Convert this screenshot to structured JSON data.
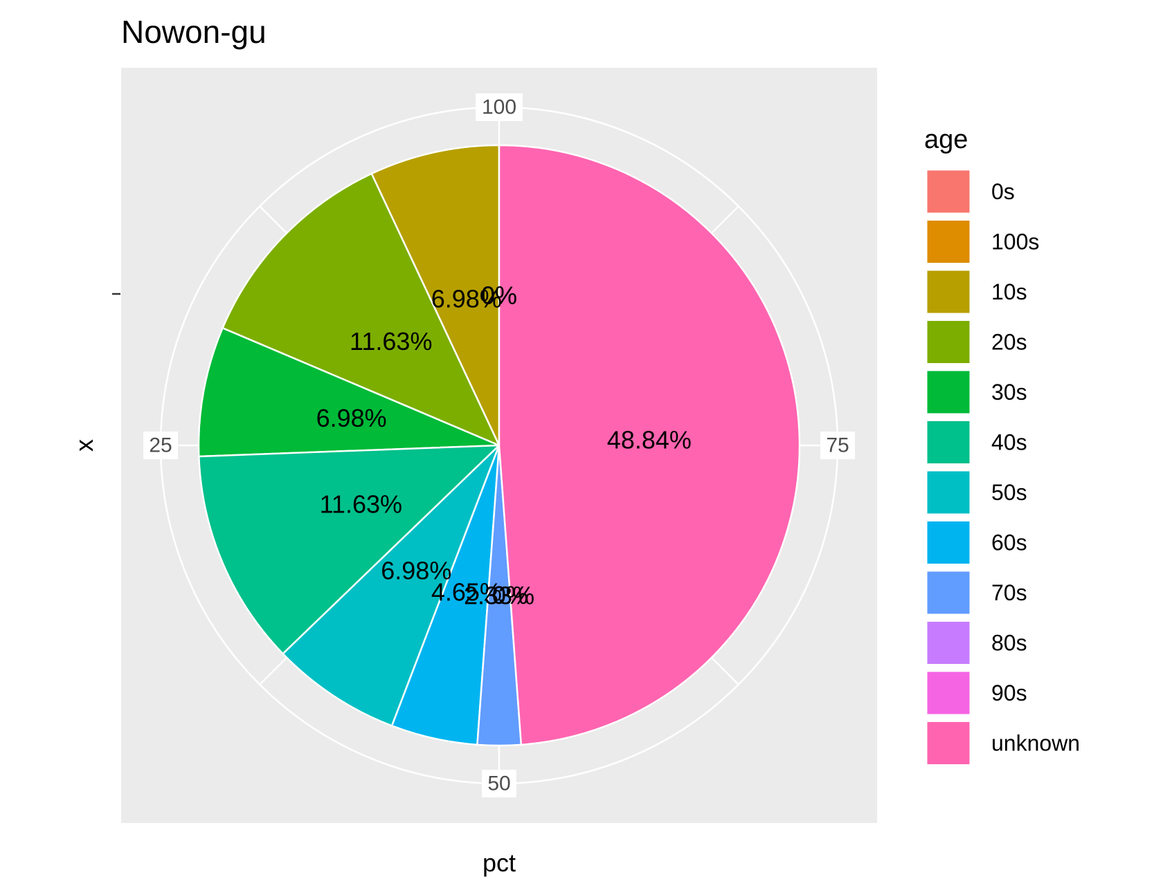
{
  "chart_data": {
    "type": "pie",
    "title": "Nowon-gu",
    "xlabel": "pct",
    "ylabel": "x",
    "y_tick_label": "",
    "angular_ticks": [
      "100",
      "25",
      "50",
      "75"
    ],
    "legend_title": "age",
    "legend_position": "right",
    "grid": true,
    "categories": [
      "0s",
      "100s",
      "10s",
      "20s",
      "30s",
      "40s",
      "50s",
      "60s",
      "70s",
      "80s",
      "90s",
      "unknown"
    ],
    "values": [
      0,
      0,
      6.98,
      11.63,
      6.98,
      11.63,
      6.98,
      4.65,
      2.33,
      0,
      0,
      48.84
    ],
    "labels": [
      "0%",
      "0%",
      "6.98%",
      "11.63%",
      "6.98%",
      "11.63%",
      "6.98%",
      "4.65%",
      "2.33%",
      "0%",
      "0%",
      "48.84%"
    ],
    "colors": [
      "#F8766D",
      "#DE8C00",
      "#B79F00",
      "#7CAE00",
      "#00BA38",
      "#00C08B",
      "#00BFC4",
      "#00B4F0",
      "#619CFF",
      "#C77CFF",
      "#F564E3",
      "#FF64B0"
    ]
  }
}
